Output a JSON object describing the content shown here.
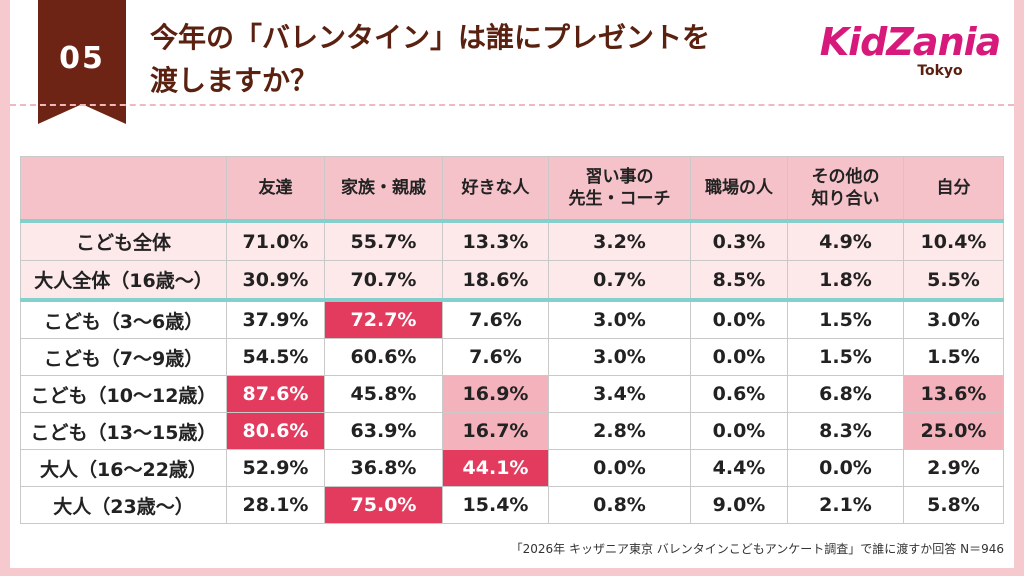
{
  "badge": "05",
  "title": [
    "今年の「バレンタイン」は誰にプレゼントを",
    "渡しますか？"
  ],
  "logo": {
    "name": "KidZania",
    "city": "Tokyo"
  },
  "table": {
    "header": [
      [
        "友達"
      ],
      [
        "家族・親戚"
      ],
      [
        "好きな人"
      ],
      [
        "習い事の",
        "先生・コーチ"
      ],
      [
        "職場の人"
      ],
      [
        "その他の",
        "知り合い"
      ],
      [
        "自分"
      ]
    ],
    "summary_rows": [
      {
        "label": "こども全体",
        "cells": [
          "71.0%",
          "55.7%",
          "13.3%",
          "3.2%",
          "0.3%",
          "4.9%",
          "10.4%"
        ]
      },
      {
        "label": "大人全体（16歳～）",
        "cells": [
          "30.9%",
          "70.7%",
          "18.6%",
          "0.7%",
          "8.5%",
          "1.8%",
          "5.5%"
        ]
      }
    ],
    "rows": [
      {
        "label": "こども（3～6歳）",
        "cells": [
          "37.9%",
          {
            "text": "72.7%",
            "fill": "#e23b5e"
          },
          "7.6%",
          "3.0%",
          "0.0%",
          "1.5%",
          "3.0%"
        ]
      },
      {
        "label": "こども（7～9歳）",
        "cells": [
          "54.5%",
          "60.6%",
          "7.6%",
          "3.0%",
          "0.0%",
          "1.5%",
          "1.5%"
        ]
      },
      {
        "label": "こども（10～12歳）",
        "cells": [
          {
            "text": "87.6%",
            "fill": "#e23b5e"
          },
          "45.8%",
          {
            "text": "16.9%",
            "fill": "#f4b3bc"
          },
          "3.4%",
          "0.6%",
          "6.8%",
          {
            "text": "13.6%",
            "fill": "#f4b3bc"
          }
        ]
      },
      {
        "label": "こども（13～15歳）",
        "cells": [
          {
            "text": "80.6%",
            "fill": "#e23b5e"
          },
          "63.9%",
          {
            "text": "16.7%",
            "fill": "#f4b3bc"
          },
          "2.8%",
          "0.0%",
          "8.3%",
          {
            "text": "25.0%",
            "fill": "#f4b3bc"
          }
        ]
      },
      {
        "label": "大人（16～22歳）",
        "cells": [
          "52.9%",
          "36.8%",
          {
            "text": "44.1%",
            "fill": "#e23b5e"
          },
          "0.0%",
          "4.4%",
          "0.0%",
          "2.9%"
        ]
      },
      {
        "label": "大人（23歳～）",
        "cells": [
          "28.1%",
          {
            "text": "75.0%",
            "fill": "#e23b5e"
          },
          "15.4%",
          "0.8%",
          "9.0%",
          "2.1%",
          "5.8%"
        ]
      }
    ]
  },
  "note": "「2026年 キッザニア東京 バレンタインこどもアンケート調査」で誰に渡すか回答 N＝946"
}
